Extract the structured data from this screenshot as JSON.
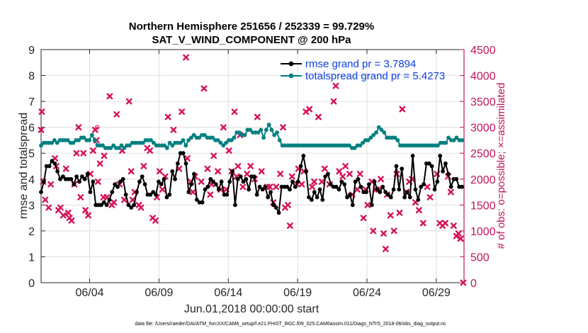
{
  "chart_data": {
    "type": "line",
    "title_line1": "Northern Hemisphere 251656 / 252339 = 99.729%",
    "title_line2": "SAT_V_WIND_COMPONENT @ 200 hPa",
    "xlabel": "Jun.01,2018 00:00:00 start",
    "ylabel": "rmse and totalspread",
    "y2label": "# of obs: o=possible; ×=assimilated",
    "xlim": [
      0.5,
      31.0
    ],
    "ylim": [
      0,
      9
    ],
    "y2lim": [
      0,
      4500
    ],
    "x_ticks": [
      4,
      9,
      14,
      19,
      24,
      29
    ],
    "x_tick_labels": [
      "06/04",
      "06/09",
      "06/14",
      "06/19",
      "06/24",
      "06/29"
    ],
    "y_ticks": [
      "0",
      "1",
      "2",
      "3",
      "4",
      "5",
      "6",
      "7",
      "8",
      "9"
    ],
    "y2_ticks": [
      "0",
      "500",
      "1000",
      "1500",
      "2000",
      "2500",
      "3000",
      "3500",
      "4000",
      "4500"
    ],
    "legend": [
      {
        "label": "rmse grand pr = 3.7894",
        "color": "#000000"
      },
      {
        "label": "totalspread grand pr = 5.4273",
        "color": "#008080"
      }
    ],
    "footer": "data file: /Users/raeder/DAI/ATM_forcXX/CAM6_setup/f.e21.FHIST_BGC.f09_025.CAM6assim.011/Diags_NTrS_2018-06/obs_diag_output.nc",
    "series": [
      {
        "name": "rmse",
        "color": "#000000",
        "values": [
          3.5,
          3.9,
          4.5,
          4.5,
          4.7,
          4.6,
          4.3,
          4.0,
          4.1,
          4.0,
          4.0,
          4.0,
          3.8,
          4.1,
          3.9,
          4.1,
          4.0,
          4.2,
          3.5,
          3.9,
          3.0,
          3.0,
          3.0,
          3.1,
          3.0,
          3.2,
          3.5,
          3.8,
          3.7,
          3.9,
          4.0,
          3.4,
          3.0,
          2.9,
          3.0,
          3.5,
          3.9,
          4.1,
          3.8,
          3.4,
          3.4,
          3.5,
          3.4,
          3.9,
          3.8,
          4.0,
          3.3,
          3.4,
          4.3,
          4.0,
          4.6,
          5.0,
          5.0,
          4.6,
          3.5,
          3.8,
          4.2,
          3.2,
          3.1,
          3.1,
          3.6,
          3.7,
          4.0,
          3.9,
          3.8,
          3.6,
          3.9,
          3.4,
          3.4,
          3.9,
          4.3,
          3.0,
          4.0,
          4.1,
          3.9,
          4.0,
          3.6,
          4.1,
          4.1,
          3.4,
          3.7,
          3.6,
          3.7,
          3.3,
          3.5,
          3.0,
          2.9,
          2.7,
          3.7,
          3.7,
          3.7,
          3.6,
          3.9,
          3.7,
          3.9,
          4.5,
          4.9,
          4.3,
          3.3,
          3.2,
          3.5,
          3.3,
          3.6,
          3.2,
          4.1,
          4.2,
          3.8,
          3.7,
          3.7,
          3.6,
          3.9,
          3.8,
          3.3,
          3.4,
          3.0,
          3.9,
          4.0,
          3.7,
          3.5,
          3.5,
          3.8,
          3.0,
          3.9,
          3.6,
          3.5,
          3.7,
          3.5,
          3.4,
          3.3,
          3.6,
          4.5,
          3.6,
          4.4,
          3.3,
          3.5,
          3.3,
          4.9,
          3.6,
          3.2,
          3.7,
          3.8,
          4.6,
          4.6,
          4.5,
          3.6,
          3.9,
          4.9,
          4.3,
          4.6,
          4.2,
          3.7,
          4.0,
          4.0,
          3.7,
          3.7
        ]
      },
      {
        "name": "totalspread",
        "color": "#008080",
        "values": [
          5.3,
          5.4,
          5.4,
          5.4,
          5.4,
          5.5,
          5.4,
          5.5,
          5.5,
          5.5,
          5.5,
          5.4,
          5.4,
          5.5,
          5.5,
          5.6,
          5.6,
          5.5,
          5.5,
          5.7,
          5.5,
          5.3,
          5.3,
          5.3,
          5.2,
          5.2,
          5.2,
          5.3,
          5.2,
          5.2,
          5.3,
          5.2,
          5.3,
          5.3,
          5.4,
          5.4,
          5.4,
          5.4,
          5.4,
          5.5,
          5.5,
          5.5,
          5.4,
          5.3,
          5.3,
          5.3,
          5.3,
          5.2,
          5.4,
          5.3,
          5.4,
          5.4,
          5.4,
          5.5,
          5.3,
          5.5,
          5.6,
          5.7,
          5.6,
          5.6,
          5.7,
          5.7,
          5.6,
          5.6,
          5.6,
          5.5,
          5.5,
          5.4,
          5.3,
          5.4,
          5.5,
          5.5,
          5.6,
          5.8,
          5.8,
          5.7,
          5.7,
          5.9,
          5.9,
          5.8,
          5.8,
          5.8,
          5.9,
          5.6,
          5.9,
          6.1,
          5.9,
          5.7,
          5.8,
          5.5,
          5.3,
          5.3,
          5.3,
          5.3,
          5.3,
          5.3,
          5.3,
          5.3,
          5.3,
          5.3,
          5.3,
          5.3,
          5.3,
          5.3,
          5.3,
          5.3,
          5.3,
          5.3,
          5.3,
          5.3,
          5.3,
          5.3,
          5.3,
          5.3,
          5.3,
          5.3,
          5.2,
          5.2,
          5.3,
          5.3,
          5.4,
          5.5,
          5.5,
          5.6,
          5.7,
          5.8,
          6.0,
          5.9,
          5.8,
          5.6,
          5.6,
          5.6,
          5.6,
          5.5,
          5.3,
          5.3,
          5.3,
          5.3,
          5.3,
          5.3,
          5.3,
          5.3,
          5.3,
          5.3,
          5.3,
          5.3,
          5.3,
          5.3,
          5.3,
          5.4,
          5.4,
          5.4,
          5.6,
          5.5,
          5.5,
          5.6,
          5.5,
          5.5
        ]
      },
      {
        "name": "obs_assimilated",
        "color": "#d6105a",
        "points": [
          [
            0.5,
            2950
          ],
          [
            0.55,
            3300
          ],
          [
            0.65,
            1950
          ],
          [
            0.8,
            1600
          ],
          [
            1.05,
            1450
          ],
          [
            1.2,
            1900
          ],
          [
            1.5,
            2400
          ],
          [
            1.6,
            2250
          ],
          [
            1.75,
            1400
          ],
          [
            1.9,
            1450
          ],
          [
            2.1,
            1300
          ],
          [
            2.3,
            2200
          ],
          [
            2.45,
            1350
          ],
          [
            2.55,
            1250
          ],
          [
            2.7,
            1200
          ],
          [
            2.9,
            1900
          ],
          [
            3.05,
            2500
          ],
          [
            3.2,
            3000
          ],
          [
            3.35,
            1650
          ],
          [
            3.55,
            2500
          ],
          [
            3.7,
            1400
          ],
          [
            3.9,
            1300
          ],
          [
            4.05,
            2100
          ],
          [
            4.25,
            2550
          ],
          [
            4.4,
            2950
          ],
          [
            4.5,
            2750
          ],
          [
            4.6,
            1950
          ],
          [
            4.75,
            2300
          ],
          [
            5.0,
            1650
          ],
          [
            5.05,
            2450
          ],
          [
            5.25,
            1650
          ],
          [
            5.45,
            3600
          ],
          [
            5.6,
            1500
          ],
          [
            5.75,
            1550
          ],
          [
            5.95,
            3250
          ],
          [
            6.15,
            1900
          ],
          [
            6.35,
            2550
          ],
          [
            6.5,
            1600
          ],
          [
            6.85,
            3500
          ],
          [
            7.0,
            2150
          ],
          [
            7.1,
            1600
          ],
          [
            7.25,
            1750
          ],
          [
            7.55,
            1500
          ],
          [
            7.7,
            1450
          ],
          [
            7.9,
            2250
          ],
          [
            8.15,
            2600
          ],
          [
            8.35,
            2550
          ],
          [
            8.55,
            1250
          ],
          [
            8.75,
            1200
          ],
          [
            8.85,
            1650
          ],
          [
            9.05,
            2150
          ],
          [
            9.25,
            1800
          ],
          [
            9.45,
            2050
          ],
          [
            9.65,
            3200
          ],
          [
            10.05,
            2950
          ],
          [
            10.45,
            2200
          ],
          [
            10.65,
            3300
          ],
          [
            10.95,
            4350
          ],
          [
            11.05,
            2400
          ],
          [
            11.3,
            1950
          ],
          [
            11.45,
            1750
          ],
          [
            11.6,
            2050
          ],
          [
            12.05,
            1950
          ],
          [
            12.25,
            3750
          ],
          [
            12.5,
            2200
          ],
          [
            12.7,
            1700
          ],
          [
            12.8,
            1900
          ],
          [
            12.95,
            2450
          ],
          [
            13.25,
            2150
          ],
          [
            13.45,
            1800
          ],
          [
            13.65,
            3000
          ],
          [
            13.85,
            1800
          ],
          [
            14.05,
            2550
          ],
          [
            14.25,
            2150
          ],
          [
            14.45,
            3300
          ],
          [
            14.6,
            2050
          ],
          [
            14.7,
            2250
          ],
          [
            14.85,
            2850
          ],
          [
            15.05,
            1850
          ],
          [
            15.35,
            2100
          ],
          [
            15.6,
            2250
          ],
          [
            15.9,
            2000
          ],
          [
            16.1,
            3200
          ],
          [
            16.4,
            2150
          ],
          [
            16.8,
            1850
          ],
          [
            17.0,
            1850
          ],
          [
            17.25,
            1550
          ],
          [
            17.45,
            1850
          ],
          [
            17.75,
            2100
          ],
          [
            17.95,
            3000
          ],
          [
            18.1,
            1450
          ],
          [
            18.3,
            1500
          ],
          [
            18.45,
            1100
          ],
          [
            18.6,
            2050
          ],
          [
            18.95,
            1900
          ],
          [
            19.05,
            2200
          ],
          [
            19.3,
            1900
          ],
          [
            19.45,
            2150
          ],
          [
            19.6,
            3300
          ],
          [
            19.85,
            3350
          ],
          [
            20.05,
            1850
          ],
          [
            20.2,
            1950
          ],
          [
            20.5,
            3200
          ],
          [
            20.75,
            1950
          ],
          [
            20.95,
            2200
          ],
          [
            21.3,
            1900
          ],
          [
            21.6,
            3500
          ],
          [
            21.75,
            3800
          ],
          [
            22.0,
            2150
          ],
          [
            22.25,
            2050
          ],
          [
            22.45,
            2250
          ],
          [
            22.75,
            2100
          ],
          [
            22.95,
            1700
          ],
          [
            23.3,
            1800
          ],
          [
            23.5,
            2100
          ],
          [
            23.75,
            1250
          ],
          [
            23.9,
            1800
          ],
          [
            24.05,
            1500
          ],
          [
            24.35,
            1950
          ],
          [
            24.45,
            1000
          ],
          [
            24.65,
            1800
          ],
          [
            24.85,
            1800
          ],
          [
            25.0,
            2000
          ],
          [
            25.2,
            950
          ],
          [
            25.35,
            650
          ],
          [
            25.45,
            1700
          ],
          [
            25.7,
            1300
          ],
          [
            25.95,
            1000
          ],
          [
            26.15,
            2100
          ],
          [
            26.35,
            1350
          ],
          [
            26.55,
            3350
          ],
          [
            26.85,
            1750
          ],
          [
            27.05,
            1950
          ],
          [
            27.25,
            2000
          ],
          [
            27.5,
            1550
          ],
          [
            27.75,
            1400
          ],
          [
            28.05,
            1150
          ],
          [
            28.35,
            1850
          ],
          [
            28.55,
            1650
          ],
          [
            29.05,
            2100
          ],
          [
            29.25,
            1150
          ],
          [
            29.45,
            1100
          ],
          [
            29.65,
            1150
          ],
          [
            29.85,
            2050
          ],
          [
            30.05,
            1750
          ],
          [
            30.25,
            1100
          ],
          [
            30.45,
            900
          ],
          [
            30.6,
            950
          ],
          [
            30.75,
            850
          ],
          [
            30.95,
            0
          ]
        ]
      },
      {
        "name": "obs_possible",
        "color": "#d6105a",
        "points": [
          [
            4.55,
            3000
          ]
        ]
      }
    ]
  }
}
